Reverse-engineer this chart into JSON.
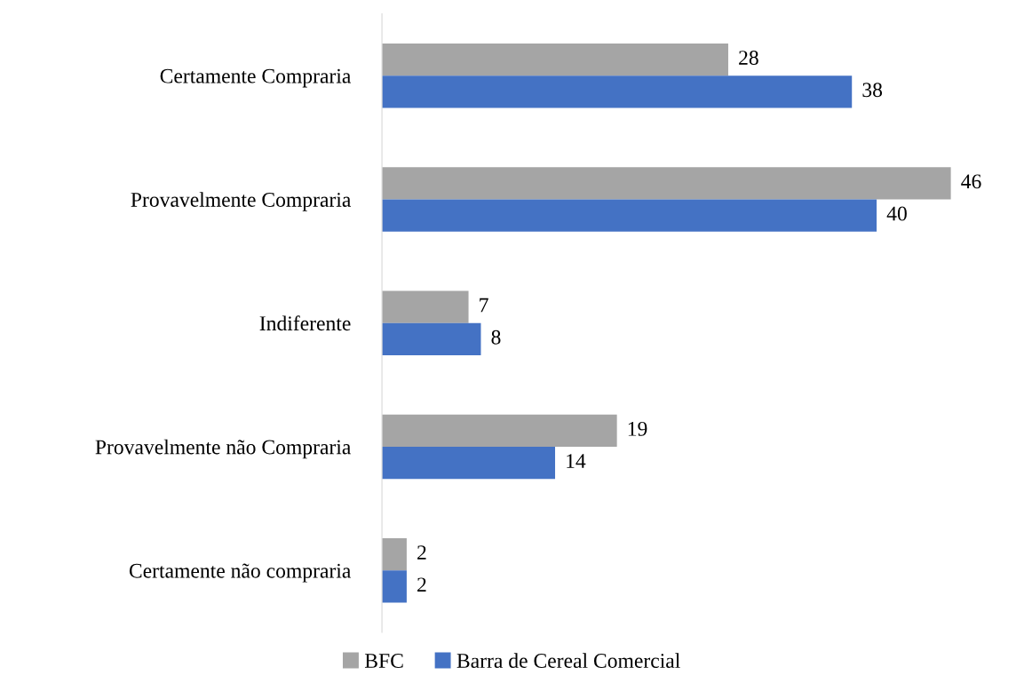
{
  "chart_data": {
    "type": "bar",
    "orientation": "horizontal",
    "categories": [
      "Certamente Compraria",
      "Provavelmente Compraria",
      "Indiferente",
      "Provavelmente não Compraria",
      "Certamente não compraria"
    ],
    "series": [
      {
        "name": "BFC",
        "color": "#a5a5a5",
        "values": [
          28,
          46,
          7,
          19,
          2
        ]
      },
      {
        "name": "Barra de Cereal Comercial",
        "color": "#4472c4",
        "values": [
          38,
          40,
          8,
          14,
          2
        ]
      }
    ],
    "data_labels": true,
    "legend": "bottom",
    "grid": false,
    "tick_labels": "y"
  }
}
